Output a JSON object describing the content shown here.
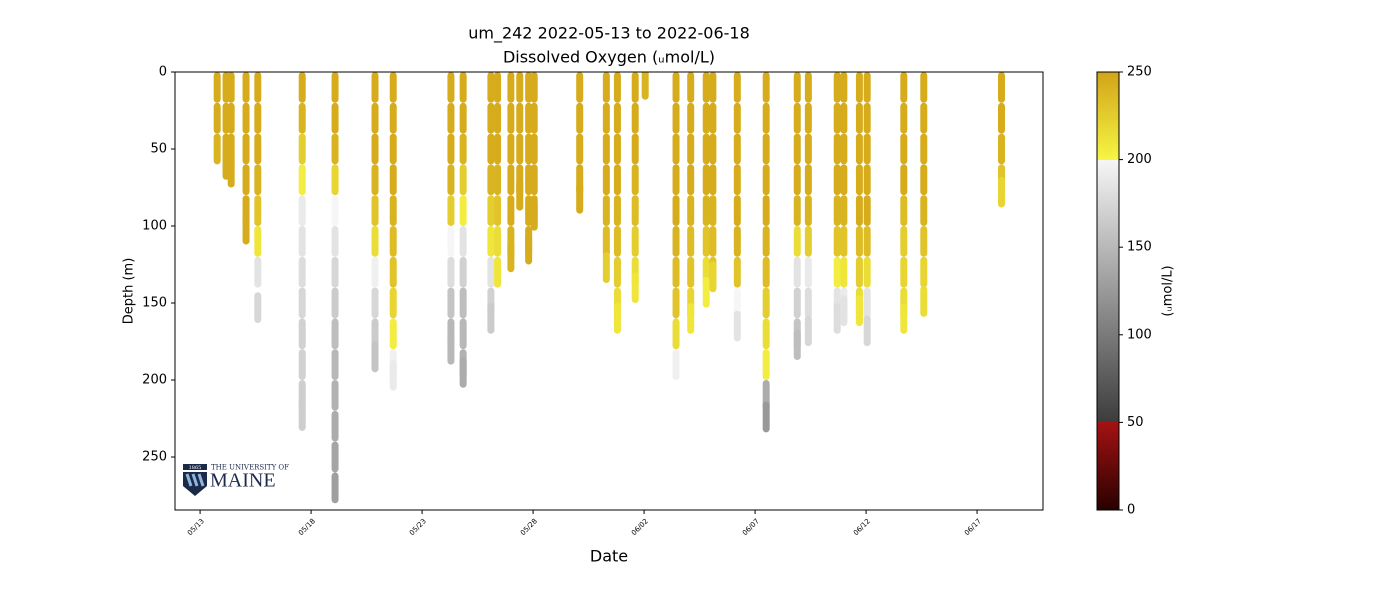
{
  "chart_data": {
    "type": "profile-scatter",
    "title": "um_242 2022-05-13 to 2022-06-18",
    "subtitle": "Dissolved Oxygen (ᵤmol/L)",
    "x_label": "Date",
    "y_label": "Depth (m)",
    "colorbar_label": "(ᵤmol/L)",
    "xlim": [
      -1.13,
      37.97
    ],
    "xticks": [
      {
        "value": 0,
        "label": "05/13"
      },
      {
        "value": 5,
        "label": "05/18"
      },
      {
        "value": 10,
        "label": "05/23"
      },
      {
        "value": 15,
        "label": "05/28"
      },
      {
        "value": 20,
        "label": "06/02"
      },
      {
        "value": 25,
        "label": "06/07"
      },
      {
        "value": 30,
        "label": "06/12"
      },
      {
        "value": 35,
        "label": "06/17"
      }
    ],
    "ylim": [
      0,
      284.4
    ],
    "y_inverted": true,
    "yticks": [
      0,
      50,
      100,
      150,
      200,
      250
    ],
    "clim": [
      0,
      250
    ],
    "cticks": [
      0,
      50,
      100,
      150,
      200,
      250
    ],
    "colormap": [
      {
        "range": [
          0,
          50
        ],
        "colors": [
          "#2a0000",
          "#a41212"
        ]
      },
      {
        "range": [
          50,
          200
        ],
        "colors": [
          "#3c3c3c",
          "#f6f6f6"
        ]
      },
      {
        "range": [
          200,
          250
        ],
        "colors": [
          "#f6f544",
          "#d2a418"
        ]
      }
    ],
    "profiles": [
      {
        "x": 0.77,
        "depth": [
          10,
          30,
          50
        ],
        "oxygen": [
          245,
          245,
          240
        ]
      },
      {
        "x": 1.17,
        "depth": [
          10,
          30,
          50,
          60
        ],
        "oxygen": [
          245,
          245,
          245,
          245
        ]
      },
      {
        "x": 1.4,
        "depth": [
          10,
          30,
          50,
          65
        ],
        "oxygen": [
          245,
          245,
          245,
          245
        ]
      },
      {
        "x": 2.07,
        "depth": [
          10,
          30,
          50,
          70,
          90,
          102
        ],
        "oxygen": [
          245,
          245,
          245,
          245,
          245,
          245
        ]
      },
      {
        "x": 2.6,
        "depth": [
          10,
          30,
          50,
          70,
          90,
          110,
          130,
          153
        ],
        "oxygen": [
          245,
          245,
          245,
          240,
          230,
          210,
          185,
          175
        ]
      },
      {
        "x": 4.6,
        "depth": [
          10,
          30,
          50,
          70,
          90,
          110,
          130,
          150,
          170,
          190,
          210,
          223
        ],
        "oxygen": [
          245,
          240,
          225,
          205,
          190,
          185,
          180,
          175,
          170,
          170,
          168,
          168
        ]
      },
      {
        "x": 6.08,
        "depth": [
          10,
          30,
          50,
          70,
          90,
          110,
          130,
          150,
          170,
          190,
          210,
          230,
          250,
          270
        ],
        "oxygen": [
          245,
          245,
          240,
          220,
          200,
          185,
          175,
          165,
          155,
          150,
          145,
          140,
          135,
          130
        ]
      },
      {
        "x": 7.88,
        "depth": [
          10,
          30,
          50,
          70,
          90,
          110,
          130,
          150,
          170,
          185
        ],
        "oxygen": [
          245,
          245,
          245,
          240,
          230,
          215,
          195,
          175,
          165,
          160
        ]
      },
      {
        "x": 8.7,
        "depth": [
          10,
          30,
          50,
          70,
          90,
          110,
          130,
          150,
          170,
          190,
          197
        ],
        "oxygen": [
          245,
          245,
          245,
          245,
          240,
          235,
          230,
          220,
          205,
          195,
          190
        ]
      },
      {
        "x": 11.3,
        "depth": [
          10,
          30,
          50,
          70,
          90,
          110,
          130,
          150,
          170,
          180
        ],
        "oxygen": [
          245,
          245,
          245,
          240,
          225,
          200,
          180,
          160,
          150,
          150
        ]
      },
      {
        "x": 11.85,
        "depth": [
          10,
          30,
          50,
          70,
          90,
          110,
          130,
          150,
          170,
          190,
          195
        ],
        "oxygen": [
          245,
          245,
          240,
          225,
          205,
          185,
          170,
          155,
          150,
          145,
          140
        ]
      },
      {
        "x": 13.1,
        "depth": [
          10,
          30,
          50,
          70,
          90,
          110,
          130,
          150,
          160
        ],
        "oxygen": [
          245,
          245,
          245,
          240,
          225,
          210,
          185,
          170,
          165
        ]
      },
      {
        "x": 13.4,
        "depth": [
          10,
          30,
          50,
          70,
          90,
          110,
          130
        ],
        "oxygen": [
          245,
          245,
          245,
          240,
          230,
          215,
          210
        ]
      },
      {
        "x": 14.0,
        "depth": [
          10,
          30,
          50,
          70,
          90,
          110,
          120
        ],
        "oxygen": [
          245,
          245,
          245,
          245,
          245,
          240,
          240
        ]
      },
      {
        "x": 14.4,
        "depth": [
          10,
          30,
          50,
          70,
          80
        ],
        "oxygen": [
          245,
          245,
          245,
          245,
          245
        ]
      },
      {
        "x": 14.8,
        "depth": [
          10,
          30,
          50,
          70,
          90,
          110,
          115
        ],
        "oxygen": [
          245,
          245,
          245,
          245,
          245,
          245,
          245
        ]
      },
      {
        "x": 15.05,
        "depth": [
          10,
          30,
          50,
          70,
          90,
          93
        ],
        "oxygen": [
          245,
          245,
          245,
          245,
          245,
          245
        ]
      },
      {
        "x": 17.1,
        "depth": [
          10,
          30,
          50,
          70,
          82
        ],
        "oxygen": [
          245,
          245,
          245,
          245,
          245
        ]
      },
      {
        "x": 18.3,
        "depth": [
          10,
          30,
          50,
          70,
          90,
          110,
          127
        ],
        "oxygen": [
          245,
          245,
          245,
          245,
          240,
          235,
          225
        ]
      },
      {
        "x": 18.8,
        "depth": [
          10,
          30,
          50,
          70,
          90,
          110,
          130,
          150,
          160
        ],
        "oxygen": [
          245,
          245,
          245,
          245,
          240,
          235,
          225,
          215,
          210
        ]
      },
      {
        "x": 19.6,
        "depth": [
          10,
          30,
          50,
          70,
          90,
          110,
          130,
          140
        ],
        "oxygen": [
          245,
          245,
          245,
          240,
          235,
          225,
          215,
          210
        ]
      },
      {
        "x": 20.05,
        "depth": [
          8
        ],
        "oxygen": [
          240
        ]
      },
      {
        "x": 21.44,
        "depth": [
          10,
          30,
          50,
          70,
          90,
          110,
          130,
          150,
          170,
          190
        ],
        "oxygen": [
          245,
          245,
          245,
          245,
          245,
          240,
          235,
          230,
          215,
          195
        ]
      },
      {
        "x": 22.1,
        "depth": [
          10,
          30,
          50,
          70,
          90,
          110,
          130,
          150,
          160
        ],
        "oxygen": [
          245,
          245,
          245,
          245,
          240,
          235,
          230,
          220,
          210
        ]
      },
      {
        "x": 22.8,
        "depth": [
          10,
          30,
          50,
          70,
          90,
          110,
          130,
          143
        ],
        "oxygen": [
          245,
          245,
          245,
          245,
          240,
          230,
          215,
          205
        ]
      },
      {
        "x": 23.1,
        "depth": [
          10,
          30,
          50,
          70,
          90,
          110,
          130,
          133
        ],
        "oxygen": [
          245,
          245,
          245,
          245,
          240,
          235,
          230,
          220
        ]
      },
      {
        "x": 24.2,
        "depth": [
          10,
          30,
          50,
          70,
          90,
          110,
          130,
          150,
          165
        ],
        "oxygen": [
          245,
          245,
          245,
          245,
          245,
          240,
          230,
          200,
          185
        ]
      },
      {
        "x": 25.5,
        "depth": [
          10,
          30,
          50,
          70,
          90,
          110,
          130,
          150,
          170,
          190,
          210,
          224
        ],
        "oxygen": [
          245,
          245,
          245,
          245,
          245,
          240,
          235,
          225,
          215,
          205,
          140,
          125
        ]
      },
      {
        "x": 26.9,
        "depth": [
          10,
          30,
          50,
          70,
          90,
          110,
          130,
          150,
          170,
          177
        ],
        "oxygen": [
          245,
          245,
          245,
          245,
          240,
          215,
          185,
          170,
          160,
          155
        ]
      },
      {
        "x": 27.4,
        "depth": [
          10,
          30,
          50,
          70,
          90,
          110,
          130,
          150,
          168
        ],
        "oxygen": [
          245,
          245,
          245,
          245,
          240,
          225,
          190,
          180,
          175
        ]
      },
      {
        "x": 28.7,
        "depth": [
          10,
          30,
          50,
          70,
          90,
          110,
          130,
          150,
          160
        ],
        "oxygen": [
          245,
          245,
          245,
          245,
          240,
          230,
          205,
          185,
          180
        ]
      },
      {
        "x": 29.0,
        "depth": [
          10,
          30,
          50,
          70,
          90,
          110,
          130,
          150,
          155
        ],
        "oxygen": [
          245,
          245,
          245,
          245,
          240,
          230,
          210,
          190,
          185
        ]
      },
      {
        "x": 29.7,
        "depth": [
          10,
          30,
          50,
          70,
          90,
          110,
          130,
          150,
          155
        ],
        "oxygen": [
          245,
          245,
          245,
          245,
          245,
          235,
          225,
          215,
          210
        ]
      },
      {
        "x": 30.05,
        "depth": [
          10,
          30,
          50,
          70,
          90,
          110,
          130,
          150,
          168
        ],
        "oxygen": [
          245,
          245,
          245,
          245,
          245,
          235,
          215,
          185,
          175
        ]
      },
      {
        "x": 31.7,
        "depth": [
          10,
          30,
          50,
          70,
          90,
          110,
          130,
          150,
          160
        ],
        "oxygen": [
          245,
          245,
          245,
          245,
          235,
          225,
          220,
          215,
          210
        ]
      },
      {
        "x": 32.6,
        "depth": [
          10,
          30,
          50,
          70,
          90,
          110,
          130,
          149
        ],
        "oxygen": [
          245,
          245,
          245,
          245,
          240,
          230,
          220,
          215
        ]
      },
      {
        "x": 36.1,
        "depth": [
          10,
          30,
          50,
          70,
          78
        ],
        "oxygen": [
          245,
          245,
          240,
          230,
          220
        ]
      }
    ]
  },
  "logo": {
    "year": "1865",
    "line1": "THE UNIVERSITY OF",
    "line2": "MAINE"
  }
}
